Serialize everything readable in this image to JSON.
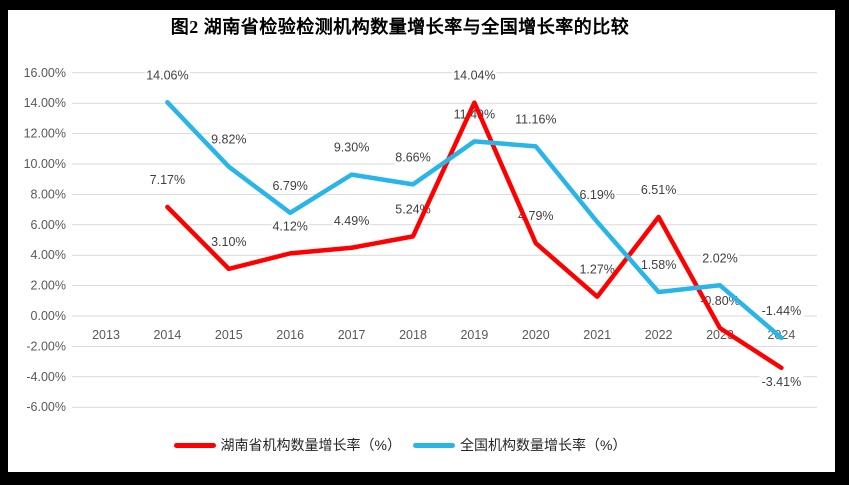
{
  "title": "图2 湖南省检验检测机构数量增长率与全国增长率的比较",
  "colors": {
    "hunan_line": "#ff0000",
    "national_line": "#29b5e8",
    "gridline": "#d9d9d9",
    "tick_label": "#595959",
    "data_label": "#404040",
    "frame": "#000000",
    "background": "#ffffff"
  },
  "chart_data": {
    "type": "line",
    "title": "图2 湖南省检验检测机构数量增长率与全国增长率的比较",
    "categories": [
      "2013",
      "2014",
      "2015",
      "2016",
      "2017",
      "2018",
      "2019",
      "2020",
      "2021",
      "2022",
      "2023",
      "2024"
    ],
    "series": [
      {
        "name": "湖南省机构数量增长率（%）",
        "color": "#ff0000",
        "values": [
          null,
          7.17,
          3.1,
          4.12,
          4.49,
          5.24,
          14.04,
          4.79,
          1.27,
          6.51,
          -0.8,
          -3.41
        ],
        "labels": [
          "",
          "7.17%",
          "3.10%",
          "4.12%",
          "4.49%",
          "5.24%",
          "14.04%",
          "4.79%",
          "1.27%",
          "6.51%",
          "-0.80%",
          "-3.41%"
        ],
        "label_sides": [
          "above",
          "above",
          "above",
          "above",
          "above",
          "above",
          "above",
          "above",
          "above",
          "above",
          "above",
          "below"
        ]
      },
      {
        "name": "全国机构数量增长率（%）",
        "color": "#29b5e8",
        "values": [
          null,
          14.06,
          9.82,
          6.79,
          9.3,
          8.66,
          11.49,
          11.16,
          6.19,
          1.58,
          2.02,
          -1.44
        ],
        "labels": [
          "",
          "14.06%",
          "9.82%",
          "6.79%",
          "9.30%",
          "8.66%",
          "11.49%",
          "11.16%",
          "6.19%",
          "1.58%",
          "2.02%",
          "-1.44%"
        ],
        "label_sides": [
          "above",
          "above",
          "above",
          "above",
          "above",
          "above",
          "above",
          "above",
          "above",
          "above",
          "above",
          "above"
        ]
      }
    ],
    "y_ticks": [
      "16.00%",
      "14.00%",
      "12.00%",
      "10.00%",
      "8.00%",
      "6.00%",
      "4.00%",
      "2.00%",
      "0.00%",
      "-2.00%",
      "-4.00%",
      "-6.00%"
    ],
    "y_tick_values": [
      16,
      14,
      12,
      10,
      8,
      6,
      4,
      2,
      0,
      -2,
      -4,
      -6
    ],
    "ylim": [
      -6,
      16
    ],
    "grid": true,
    "legend_position": "bottom"
  }
}
